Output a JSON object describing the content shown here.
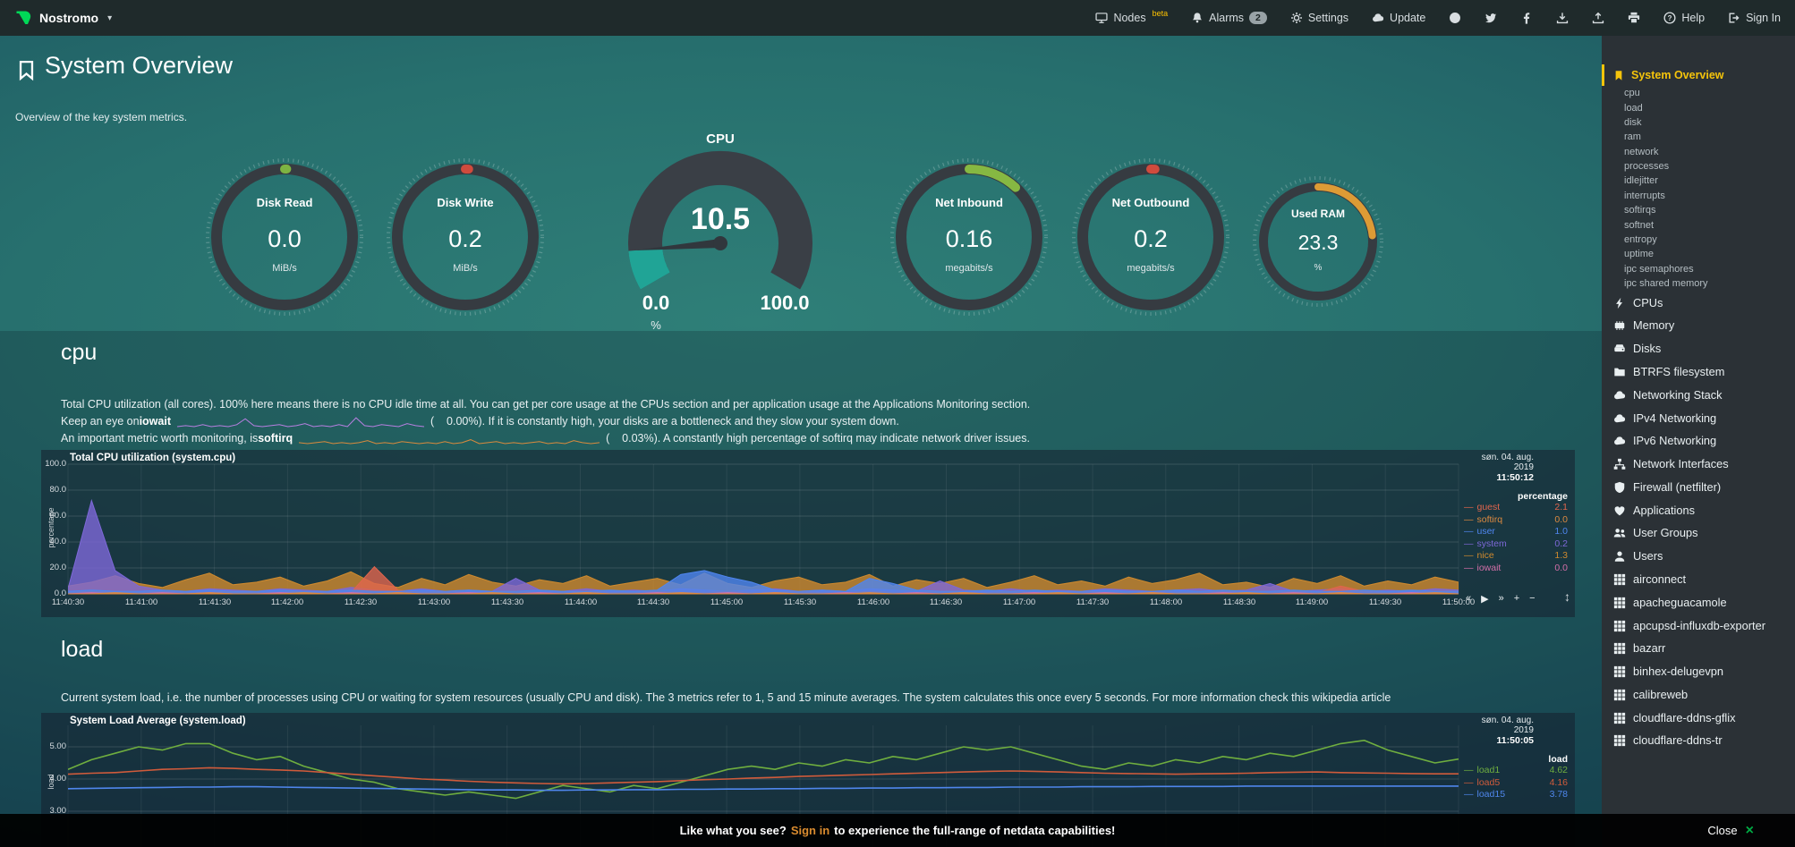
{
  "topbar": {
    "brand": "Nostromo",
    "nodes_label": "Nodes",
    "nodes_beta": "beta",
    "alarms_label": "Alarms",
    "alarms_badge": "2",
    "settings_label": "Settings",
    "update_label": "Update",
    "help_label": "Help",
    "signin_label": "Sign In"
  },
  "header": {
    "title": "System Overview",
    "subtitle": "Overview of the key system metrics."
  },
  "gauges": {
    "small": [
      {
        "title": "Disk Read",
        "value": "0.0",
        "unit": "MiB/s",
        "color": "#7db342",
        "fraction": 0.005
      },
      {
        "title": "Disk Write",
        "value": "0.2",
        "unit": "MiB/s",
        "color": "#d04b3d",
        "fraction": 0.008
      },
      {
        "title": "Net Inbound",
        "value": "0.16",
        "unit": "megabits/s",
        "color": "#86b842",
        "fraction": 0.12
      },
      {
        "title": "Net Outbound",
        "value": "0.2",
        "unit": "megabits/s",
        "color": "#d04b3d",
        "fraction": 0.01
      },
      {
        "title": "Used RAM",
        "value": "23.3",
        "unit": "%",
        "color": "#dd9b35",
        "fraction": 0.233
      }
    ],
    "cpu": {
      "title": "CPU",
      "value": "10.5",
      "min": "0.0",
      "max": "100.0",
      "unit": "%",
      "fraction": 0.105,
      "color": "#20a496"
    }
  },
  "cpu_section": {
    "heading": "cpu",
    "line1": "Total CPU utilization (all cores). 100% here means there is no CPU idle time at all. You can get per core usage at the CPUs section and per application usage at the Applications Monitoring section.",
    "line2_pre": "Keep an eye on ",
    "line2_bold": "iowait",
    "line2_post": "(    0.00%). If it is constantly high, your disks are a bottleneck and they slow your system down.",
    "line3_pre": "An important metric worth monitoring, is ",
    "line3_bold": "softirq",
    "line3_post": "(    0.03%). A constantly high percentage of softirq may indicate network driver issues.",
    "iowait_spark": [
      0,
      1,
      0,
      2,
      0,
      1,
      0,
      2,
      8,
      1,
      0,
      1,
      2,
      0,
      1,
      3,
      0,
      1,
      0,
      2,
      0,
      9,
      1,
      0,
      2,
      1,
      0,
      3,
      1,
      0
    ],
    "softirq_spark": [
      1,
      0,
      1,
      2,
      0,
      1,
      0,
      1,
      3,
      0,
      1,
      0,
      2,
      1,
      0,
      1,
      0,
      2,
      0,
      1,
      4,
      0,
      1,
      2,
      0,
      1,
      0,
      1,
      2,
      0,
      1,
      0,
      3,
      1,
      0,
      1
    ]
  },
  "load_section": {
    "heading": "load",
    "desc": "Current system load, i.e. the number of processes using CPU or waiting for system resources (usually CPU and disk). The 3 metrics refer to 1, 5 and 15 minute averages. The system calculates this once every 5 seconds. For more information check this wikipedia article"
  },
  "chart_data": [
    {
      "id": "cpu",
      "type": "area",
      "title": "Total CPU utilization (system.cpu)",
      "date": "søn. 04. aug. 2019",
      "time": "11:50:12",
      "ylabel": "percentage",
      "legend_header": "percentage",
      "ylim": [
        0,
        100
      ],
      "yticks": [
        "100.0",
        "80.0",
        "60.0",
        "40.0",
        "20.0",
        "0.0"
      ],
      "xticks": [
        "11:40:30",
        "11:41:00",
        "11:41:30",
        "11:42:00",
        "11:42:30",
        "11:43:00",
        "11:43:30",
        "11:44:00",
        "11:44:30",
        "11:45:00",
        "11:45:30",
        "11:46:00",
        "11:46:30",
        "11:47:00",
        "11:47:30",
        "11:48:00",
        "11:48:30",
        "11:49:00",
        "11:49:30",
        "11:50:00"
      ],
      "series": [
        {
          "name": "guest",
          "value": "2.1",
          "color": "#e0654d",
          "points": [
            1,
            2,
            1,
            1,
            2,
            1,
            1,
            2,
            1,
            1,
            2,
            1,
            1,
            21,
            3,
            1,
            2,
            1,
            1,
            2,
            1,
            1,
            2,
            1,
            1,
            2,
            1,
            1,
            2,
            1,
            1,
            2,
            1,
            1,
            2,
            1,
            1,
            2,
            1,
            1,
            2,
            1,
            1,
            2,
            1,
            1,
            2,
            1,
            1,
            2,
            1,
            1,
            2,
            1,
            6,
            2,
            1,
            1,
            2,
            2
          ]
        },
        {
          "name": "softirq",
          "value": "0.0",
          "color": "#dd8a41",
          "points": [
            0,
            0,
            1,
            0,
            0,
            0,
            1,
            0,
            0,
            0,
            1,
            0,
            0,
            0,
            1,
            0,
            0,
            0,
            1,
            0,
            0,
            0,
            1,
            0,
            0,
            0,
            1,
            0,
            0,
            0,
            1,
            0,
            0,
            0,
            1,
            0,
            0,
            0,
            1,
            0,
            0,
            0,
            1,
            0,
            0,
            0,
            1,
            0,
            0,
            0,
            1,
            0,
            0,
            0,
            1,
            0,
            0,
            0,
            1,
            0
          ]
        },
        {
          "name": "user",
          "value": "1.0",
          "color": "#4f86f0",
          "points": [
            2,
            3,
            2,
            2,
            3,
            2,
            3,
            2,
            2,
            3,
            2,
            2,
            3,
            2,
            2,
            3,
            2,
            3,
            2,
            2,
            3,
            2,
            2,
            3,
            2,
            3,
            15,
            18,
            13,
            9,
            3,
            2,
            3,
            2,
            12,
            8,
            3,
            2,
            2,
            3,
            2,
            3,
            2,
            2,
            3,
            2,
            2,
            3,
            2,
            3,
            2,
            2,
            3,
            2,
            2,
            3,
            2,
            3,
            2,
            2
          ]
        },
        {
          "name": "system",
          "value": "0.2",
          "color": "#7d68d8",
          "points": [
            4,
            72,
            18,
            6,
            3,
            2,
            4,
            3,
            2,
            4,
            3,
            2,
            5,
            3,
            2,
            4,
            2,
            3,
            2,
            12,
            3,
            2,
            4,
            2,
            3,
            2,
            4,
            3,
            2,
            3,
            4,
            2,
            3,
            2,
            4,
            3,
            2,
            10,
            3,
            2,
            4,
            2,
            3,
            2,
            4,
            3,
            2,
            3,
            4,
            2,
            3,
            8,
            2,
            3,
            4,
            2,
            3,
            2,
            4,
            3
          ]
        },
        {
          "name": "nice",
          "value": "1.3",
          "color": "#cf8a2e",
          "points": [
            6,
            9,
            14,
            8,
            5,
            11,
            16,
            7,
            9,
            13,
            6,
            10,
            17,
            8,
            5,
            12,
            7,
            15,
            9,
            6,
            11,
            8,
            14,
            6,
            9,
            12,
            7,
            16,
            8,
            5,
            10,
            13,
            7,
            9,
            15,
            6,
            11,
            8,
            12,
            5,
            9,
            14,
            7,
            10,
            6,
            13,
            8,
            11,
            16,
            7,
            9,
            5,
            12,
            8,
            14,
            6,
            10,
            7,
            13,
            9
          ]
        },
        {
          "name": "iowait",
          "value": "0.0",
          "color": "#d36fa8",
          "points": [
            0,
            1,
            0,
            0,
            1,
            0,
            1,
            0,
            0,
            1,
            0,
            0,
            1,
            0,
            1,
            0,
            0,
            1,
            0,
            0,
            1,
            0,
            1,
            0,
            0,
            1,
            0,
            0,
            1,
            0,
            1,
            0,
            0,
            1,
            0,
            0,
            1,
            0,
            1,
            0,
            0,
            1,
            0,
            0,
            1,
            0,
            1,
            0,
            0,
            1,
            0,
            0,
            1,
            0,
            1,
            0,
            0,
            1,
            0,
            0
          ]
        }
      ],
      "toolbox": [
        {
          "name": "pan-backward",
          "glyph": "«"
        },
        {
          "name": "play",
          "glyph": "▶"
        },
        {
          "name": "pan-forward",
          "glyph": "»"
        },
        {
          "name": "zoom-in",
          "glyph": "+"
        },
        {
          "name": "zoom-out",
          "glyph": "−"
        }
      ]
    },
    {
      "id": "load",
      "type": "line",
      "title": "System Load Average (system.load)",
      "date": "søn. 04. aug. 2019",
      "time": "11:50:05",
      "ylabel": "load",
      "legend_header": "load",
      "ylim": [
        2.8,
        5.4
      ],
      "yticks": [
        "5.00",
        "4.00",
        "3.00"
      ],
      "series": [
        {
          "name": "load1",
          "value": "4.62",
          "color": "#6fae3f",
          "points": [
            4.3,
            4.6,
            4.8,
            5.0,
            4.9,
            5.1,
            5.1,
            4.8,
            4.6,
            4.7,
            4.4,
            4.2,
            4.0,
            3.9,
            3.7,
            3.6,
            3.5,
            3.6,
            3.5,
            3.4,
            3.6,
            3.8,
            3.7,
            3.6,
            3.8,
            3.7,
            3.9,
            4.1,
            4.3,
            4.4,
            4.3,
            4.5,
            4.4,
            4.6,
            4.5,
            4.7,
            4.6,
            4.8,
            5.0,
            4.9,
            5.0,
            4.8,
            4.6,
            4.4,
            4.3,
            4.5,
            4.4,
            4.6,
            4.5,
            4.7,
            4.6,
            4.8,
            4.7,
            4.9,
            5.1,
            5.2,
            4.9,
            4.7,
            4.5,
            4.62
          ]
        },
        {
          "name": "load5",
          "value": "4.16",
          "color": "#d05b3b",
          "points": [
            4.15,
            4.18,
            4.2,
            4.25,
            4.3,
            4.32,
            4.35,
            4.33,
            4.3,
            4.28,
            4.25,
            4.2,
            4.15,
            4.1,
            4.05,
            4.0,
            3.97,
            3.93,
            3.9,
            3.88,
            3.86,
            3.85,
            3.86,
            3.88,
            3.9,
            3.92,
            3.95,
            3.98,
            4.0,
            4.03,
            4.05,
            4.08,
            4.1,
            4.12,
            4.14,
            4.16,
            4.18,
            4.2,
            4.22,
            4.24,
            4.25,
            4.24,
            4.22,
            4.2,
            4.18,
            4.17,
            4.16,
            4.15,
            4.16,
            4.17,
            4.18,
            4.2,
            4.21,
            4.22,
            4.2,
            4.19,
            4.18,
            4.17,
            4.16,
            4.16
          ]
        },
        {
          "name": "load15",
          "value": "3.78",
          "color": "#4f86ec",
          "points": [
            3.7,
            3.71,
            3.72,
            3.73,
            3.74,
            3.75,
            3.75,
            3.76,
            3.76,
            3.75,
            3.74,
            3.73,
            3.72,
            3.71,
            3.7,
            3.69,
            3.68,
            3.67,
            3.66,
            3.66,
            3.65,
            3.65,
            3.66,
            3.66,
            3.67,
            3.67,
            3.68,
            3.68,
            3.69,
            3.69,
            3.7,
            3.7,
            3.71,
            3.71,
            3.72,
            3.72,
            3.73,
            3.73,
            3.74,
            3.74,
            3.75,
            3.75,
            3.75,
            3.76,
            3.76,
            3.76,
            3.77,
            3.77,
            3.77,
            3.77,
            3.78,
            3.78,
            3.78,
            3.78,
            3.78,
            3.78,
            3.78,
            3.78,
            3.78,
            3.78
          ]
        }
      ]
    }
  ],
  "sidebar": {
    "active": {
      "label": "System Overview",
      "icon": "bookmark"
    },
    "subitems": [
      "cpu",
      "load",
      "disk",
      "ram",
      "network",
      "processes",
      "idlejitter",
      "interrupts",
      "softirqs",
      "softnet",
      "entropy",
      "uptime",
      "ipc semaphores",
      "ipc shared memory"
    ],
    "categories": [
      {
        "icon": "bolt",
        "label": "CPUs"
      },
      {
        "icon": "memory",
        "label": "Memory"
      },
      {
        "icon": "disk",
        "label": "Disks"
      },
      {
        "icon": "folder",
        "label": "BTRFS filesystem"
      },
      {
        "icon": "cloud",
        "label": "Networking Stack"
      },
      {
        "icon": "cloud",
        "label": "IPv4 Networking"
      },
      {
        "icon": "cloud",
        "label": "IPv6 Networking"
      },
      {
        "icon": "sitemap",
        "label": "Network Interfaces"
      },
      {
        "icon": "shield",
        "label": "Firewall (netfilter)"
      },
      {
        "icon": "heart",
        "label": "Applications"
      },
      {
        "icon": "users",
        "label": "User Groups"
      },
      {
        "icon": "user",
        "label": "Users"
      }
    ],
    "apps": [
      "airconnect",
      "apacheguacamole",
      "apcupsd-influxdb-exporter",
      "bazarr",
      "binhex-delugevpn",
      "calibreweb",
      "cloudflare-ddns-gflix",
      "cloudflare-ddns-tr"
    ]
  },
  "footer": {
    "pre": "Like what you see?",
    "signin": "Sign in",
    "post": "to experience the full-range of netdata capabilities!",
    "close": "Close",
    "accent_color": "#d98b2f",
    "close_color": "#00ab44"
  }
}
